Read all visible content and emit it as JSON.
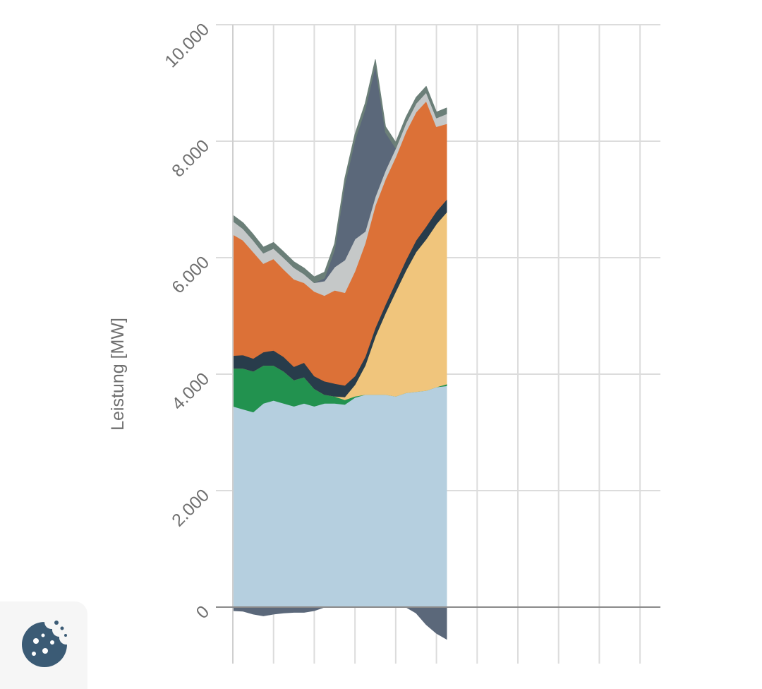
{
  "chart_data": {
    "type": "area",
    "stacked": true,
    "ylabel": "Leistung [MW]",
    "ylim": [
      -600,
      10000
    ],
    "yticks": [
      0,
      2000,
      4000,
      6000,
      8000,
      10000
    ],
    "ytick_labels": [
      "0",
      "2.000",
      "4.000",
      "6.000",
      "8.000",
      "10.000"
    ],
    "x_slots": 10.5,
    "grid": true,
    "legend": "none",
    "x": [
      0,
      0.25,
      0.5,
      0.75,
      1,
      1.25,
      1.5,
      1.75,
      2,
      2.25,
      2.5,
      2.75,
      3,
      3.25,
      3.5,
      3.75,
      4,
      4.25,
      4.5,
      4.75,
      5,
      5.25
    ],
    "series": [
      {
        "key": "base",
        "color": "#b5cfdf",
        "negative": false,
        "values": [
          3450,
          3400,
          3350,
          3500,
          3550,
          3500,
          3450,
          3500,
          3450,
          3500,
          3500,
          3480,
          3600,
          3650,
          3650,
          3650,
          3620,
          3680,
          3700,
          3720,
          3780,
          3800
        ]
      },
      {
        "key": "green",
        "color": "#22924f",
        "negative": false,
        "values": [
          650,
          700,
          700,
          650,
          600,
          550,
          450,
          450,
          300,
          150,
          120,
          80,
          20,
          0,
          0,
          0,
          0,
          0,
          0,
          0,
          0,
          30
        ]
      },
      {
        "key": "yellow",
        "color": "#f0c57c",
        "negative": false,
        "values": [
          0,
          0,
          0,
          0,
          0,
          0,
          0,
          0,
          0,
          0,
          0,
          50,
          200,
          500,
          1000,
          1400,
          1800,
          2100,
          2400,
          2600,
          2800,
          2950
        ]
      },
      {
        "key": "dark",
        "color": "#283c4b",
        "negative": false,
        "values": [
          220,
          230,
          220,
          230,
          260,
          250,
          230,
          250,
          220,
          230,
          220,
          200,
          150,
          150,
          150,
          150,
          160,
          180,
          200,
          220,
          220,
          220
        ]
      },
      {
        "key": "orange",
        "color": "#dc7137",
        "negative": false,
        "values": [
          2080,
          1970,
          1830,
          1520,
          1570,
          1500,
          1500,
          1370,
          1450,
          1470,
          1600,
          1590,
          1800,
          1950,
          2100,
          2150,
          2150,
          2200,
          2200,
          2150,
          1450,
          1300
        ]
      },
      {
        "key": "lightgray",
        "color": "#c5c8c8",
        "negative": false,
        "values": [
          230,
          200,
          200,
          180,
          180,
          200,
          200,
          150,
          150,
          250,
          400,
          560,
          550,
          200,
          150,
          150,
          150,
          150,
          150,
          150,
          150,
          170
        ]
      },
      {
        "key": "slate",
        "color": "#5b687a",
        "negative": false,
        "values": [
          0,
          0,
          0,
          0,
          0,
          0,
          0,
          0,
          0,
          50,
          300,
          1300,
          1700,
          2100,
          2250,
          650,
          0,
          0,
          0,
          0,
          0,
          0
        ]
      },
      {
        "key": "teal",
        "color": "#6b7f78",
        "negative": false,
        "values": [
          100,
          100,
          100,
          100,
          100,
          100,
          100,
          100,
          100,
          100,
          100,
          100,
          100,
          100,
          100,
          100,
          100,
          100,
          100,
          100,
          100,
          100
        ]
      },
      {
        "key": "negative",
        "color": "#5b687a",
        "negative": true,
        "values": [
          -60,
          -70,
          -120,
          -150,
          -120,
          -100,
          -90,
          -90,
          -60,
          0,
          0,
          0,
          0,
          0,
          0,
          0,
          0,
          0,
          -100,
          -300,
          -450,
          -550
        ]
      }
    ]
  },
  "cookie_button": {
    "icon": "cookie-icon",
    "color": "#3b5b75"
  }
}
